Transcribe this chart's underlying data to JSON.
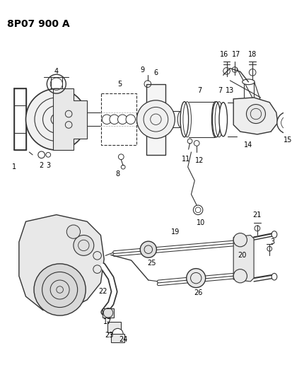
{
  "title": "8P07 900 A",
  "background_color": "#ffffff",
  "line_color": "#333333",
  "text_color": "#000000",
  "title_fontsize": 10,
  "label_fontsize": 7,
  "figsize": [
    4.14,
    5.33
  ],
  "dpi": 100
}
